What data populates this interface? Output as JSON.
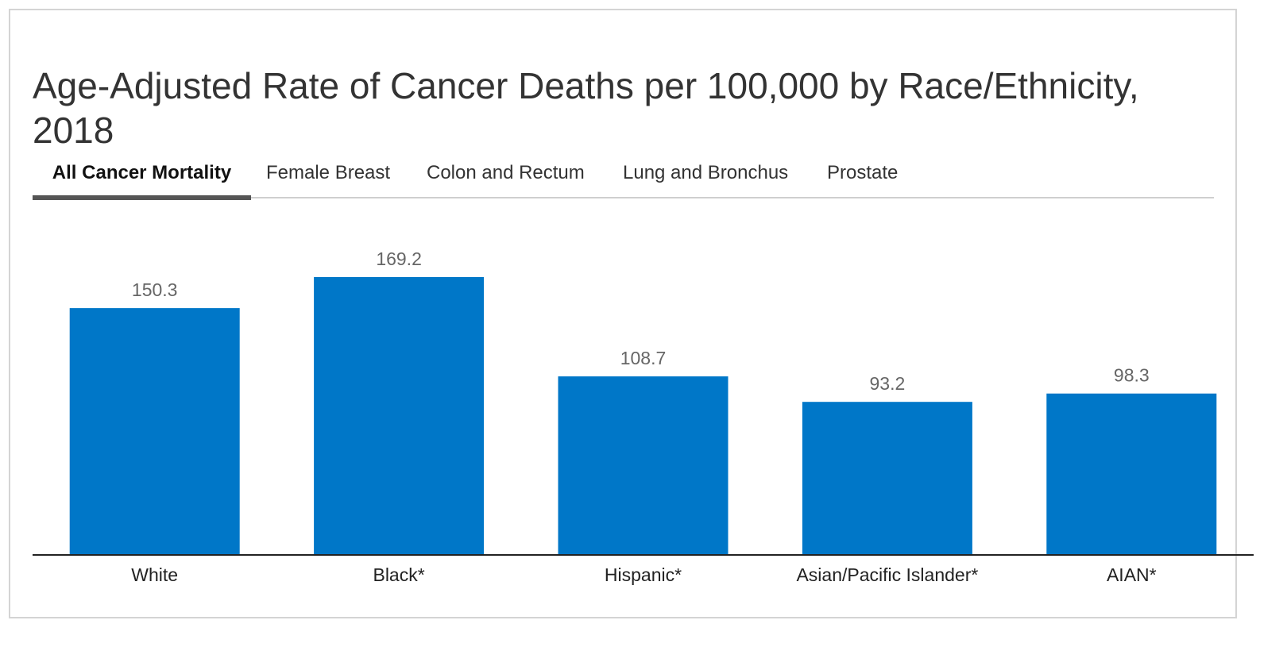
{
  "title": "Age-Adjusted Rate of Cancer Deaths per 100,000 by Race/Ethnicity, 2018",
  "tabs": [
    {
      "label": "All Cancer Mortality",
      "active": true
    },
    {
      "label": "Female Breast",
      "active": false
    },
    {
      "label": "Colon and Rectum",
      "active": false
    },
    {
      "label": "Lung and Bronchus",
      "active": false
    },
    {
      "label": "Prostate",
      "active": false
    }
  ],
  "colors": {
    "bar": "#0077c8",
    "value_label": "#666666",
    "category_label": "#222222",
    "axis": "#222222"
  },
  "chart_data": {
    "type": "bar",
    "categories": [
      "White",
      "Black*",
      "Hispanic*",
      "Asian/Pacific Islander*",
      "AIAN*"
    ],
    "values": [
      150.3,
      169.2,
      108.7,
      93.2,
      98.3
    ],
    "value_labels": [
      "150.3",
      "169.2",
      "108.7",
      "93.2",
      "98.3"
    ],
    "ylim": [
      0,
      169.2
    ],
    "grid": false,
    "legend": "none"
  }
}
